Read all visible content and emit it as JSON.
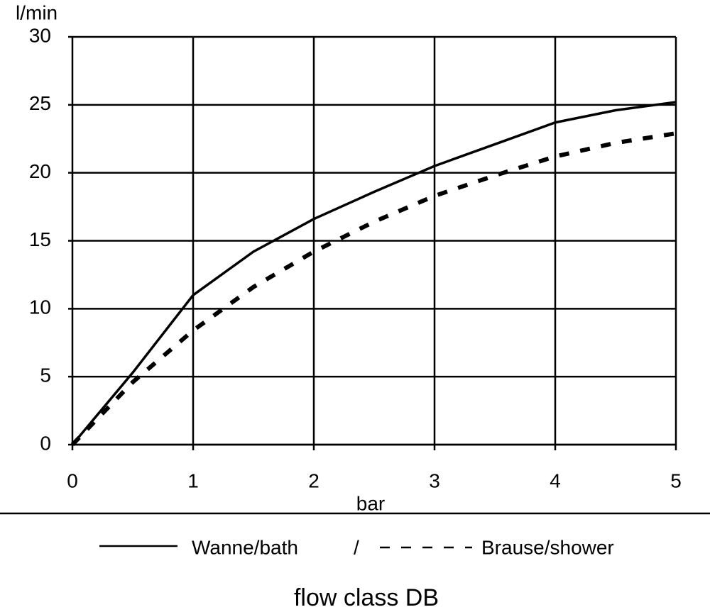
{
  "chart_data": {
    "type": "line",
    "title": "flow class DB",
    "xlabel": "bar",
    "ylabel": "l/min",
    "x": [
      0,
      0.5,
      1,
      1.5,
      2,
      2.5,
      3,
      3.5,
      4,
      4.5,
      5
    ],
    "series": [
      {
        "name": "Wanne/bath",
        "color": "#000000",
        "style": "solid",
        "values": [
          0,
          5.3,
          11,
          14.2,
          16.6,
          18.6,
          20.5,
          22.1,
          23.7,
          24.6,
          25.2
        ]
      },
      {
        "name": "Brause/shower",
        "color": "#000000",
        "style": "dashed",
        "values": [
          0,
          4.6,
          8.4,
          11.6,
          14.2,
          16.4,
          18.3,
          19.8,
          21.2,
          22.2,
          22.9
        ]
      }
    ],
    "legend_separator": "/",
    "xlim": [
      0,
      5
    ],
    "xticks": [
      0,
      1,
      2,
      3,
      4,
      5
    ],
    "ylim": [
      0,
      30
    ],
    "yticks": [
      0,
      5,
      10,
      15,
      20,
      25,
      30
    ],
    "grid": true
  }
}
